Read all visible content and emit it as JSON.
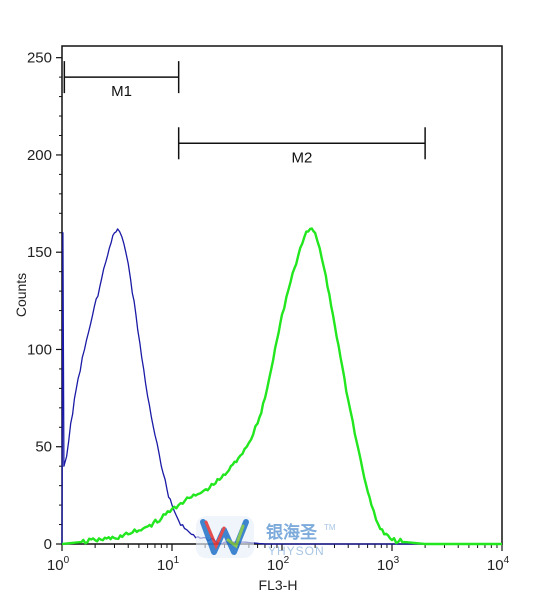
{
  "chart_data": {
    "type": "line",
    "xlabel": "FL3-H",
    "ylabel": "Counts",
    "x_scale": "log",
    "xlim": [
      1,
      10000
    ],
    "ylim": [
      0,
      256
    ],
    "x_ticks": [
      {
        "base": "10",
        "exp": "0",
        "value": 1
      },
      {
        "base": "10",
        "exp": "1",
        "value": 10
      },
      {
        "base": "10",
        "exp": "2",
        "value": 100
      },
      {
        "base": "10",
        "exp": "3",
        "value": 1000
      },
      {
        "base": "10",
        "exp": "4",
        "value": 10000
      }
    ],
    "y_ticks": [
      0,
      50,
      100,
      150,
      200,
      250
    ],
    "grid": false,
    "series": [
      {
        "color": "#1a1aa6",
        "points": [
          [
            1.0,
            0
          ],
          [
            1.02,
            160
          ],
          [
            1.04,
            40
          ],
          [
            1.1,
            45
          ],
          [
            1.2,
            62
          ],
          [
            1.4,
            85
          ],
          [
            1.6,
            100
          ],
          [
            1.9,
            118
          ],
          [
            2.2,
            132
          ],
          [
            2.5,
            145
          ],
          [
            2.8,
            155
          ],
          [
            3.0,
            160
          ],
          [
            3.2,
            162
          ],
          [
            3.5,
            158
          ],
          [
            3.8,
            150
          ],
          [
            4.2,
            136
          ],
          [
            4.7,
            118
          ],
          [
            5.3,
            96
          ],
          [
            6.0,
            76
          ],
          [
            7.0,
            56
          ],
          [
            8.0,
            40
          ],
          [
            9.0,
            28
          ],
          [
            10.0,
            20
          ],
          [
            11.5,
            12
          ],
          [
            13,
            8
          ],
          [
            15,
            5
          ],
          [
            18,
            3
          ],
          [
            22,
            2
          ],
          [
            30,
            1
          ],
          [
            45,
            1
          ],
          [
            70,
            0
          ],
          [
            10000,
            0
          ]
        ]
      },
      {
        "color": "#22e61e",
        "points": [
          [
            1.0,
            0
          ],
          [
            1.5,
            1
          ],
          [
            2,
            2
          ],
          [
            3,
            3
          ],
          [
            4,
            5
          ],
          [
            5,
            7
          ],
          [
            6,
            9
          ],
          [
            8,
            13
          ],
          [
            10,
            18
          ],
          [
            12,
            21
          ],
          [
            15,
            24
          ],
          [
            18,
            26
          ],
          [
            22,
            29
          ],
          [
            27,
            33
          ],
          [
            33,
            38
          ],
          [
            40,
            44
          ],
          [
            50,
            52
          ],
          [
            60,
            62
          ],
          [
            70,
            75
          ],
          [
            80,
            90
          ],
          [
            90,
            105
          ],
          [
            100,
            118
          ],
          [
            120,
            135
          ],
          [
            140,
            148
          ],
          [
            160,
            158
          ],
          [
            180,
            162
          ],
          [
            200,
            160
          ],
          [
            220,
            152
          ],
          [
            250,
            138
          ],
          [
            290,
            118
          ],
          [
            340,
            96
          ],
          [
            400,
            74
          ],
          [
            480,
            52
          ],
          [
            560,
            34
          ],
          [
            650,
            20
          ],
          [
            750,
            10
          ],
          [
            850,
            5
          ],
          [
            1000,
            2
          ],
          [
            1300,
            1
          ],
          [
            2000,
            0
          ],
          [
            10000,
            0
          ]
        ]
      }
    ],
    "markers": [
      {
        "label": "M1",
        "x_start": 1.05,
        "x_end": 11.5,
        "y": 240
      },
      {
        "label": "M2",
        "x_start": 11.5,
        "x_end": 2000,
        "y": 206
      }
    ]
  },
  "watermark": {
    "text_cn": "银海圣",
    "text_en": "YHYSON",
    "tm": "TM"
  }
}
